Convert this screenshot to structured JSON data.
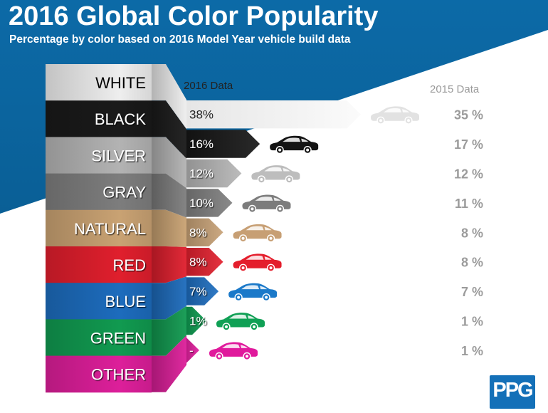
{
  "header": {
    "title": "2016 Global Color Popularity",
    "subtitle": "Percentage by color based on 2016 Model Year vehicle build data"
  },
  "logo": {
    "text": "PPG",
    "color": "#1470b8"
  },
  "chart_data": {
    "type": "bar",
    "title": "2016 Global Color Popularity",
    "subtitle": "Percentage by color based on 2016 Model Year vehicle build data",
    "categories": [
      "WHITE",
      "BLACK",
      "SILVER",
      "GRAY",
      "NATURAL",
      "RED",
      "BLUE",
      "GREEN",
      "OTHER"
    ],
    "series": [
      {
        "name": "2016 Data",
        "values": [
          38,
          16,
          12,
          10,
          8,
          8,
          7,
          1,
          null
        ],
        "labels": [
          "38%",
          "16%",
          "12%",
          "10%",
          "8%",
          "8%",
          "7%",
          "1%",
          "-"
        ]
      },
      {
        "name": "2015 Data",
        "values": [
          35,
          17,
          12,
          11,
          8,
          8,
          7,
          1,
          1
        ],
        "labels": [
          "35 %",
          "17 %",
          "12 %",
          "11 %",
          "8 %",
          "8 %",
          "7 %",
          "1 %",
          "1 %"
        ]
      }
    ],
    "colors": [
      "#f4f4f4",
      "#161616",
      "#b6b6b6",
      "#808080",
      "#c8a277",
      "#e3202e",
      "#1e6ec0",
      "#0f9e52",
      "#e21f9e"
    ],
    "band_colors": [
      "#eeeeee",
      "#1a1a1a",
      "#b3b3b3",
      "#7d7d7d",
      "#c9a273",
      "#e01f2d",
      "#1d6cbd",
      "#119a50",
      "#dd1f9a"
    ],
    "car_colors": [
      "#e2e2e2",
      "#141414",
      "#bdbdbd",
      "#7c7c7c",
      "#c79f74",
      "#e41e2c",
      "#1b79c9",
      "#10a055",
      "#e0199c"
    ],
    "label_colors": [
      "#000000",
      "#ffffff",
      "#ffffff",
      "#ffffff",
      "#ffffff",
      "#ffffff",
      "#ffffff",
      "#ffffff",
      "#ffffff"
    ],
    "label_shadow": [
      false,
      true,
      true,
      true,
      true,
      true,
      true,
      true,
      true
    ],
    "value_text_colors": [
      "#222222",
      "#ffffff",
      "#ffffff",
      "#ffffff",
      "#ffffff",
      "#ffffff",
      "#ffffff",
      "#ffffff",
      "#ffffff"
    ],
    "legend": "top",
    "grid": false,
    "background": {
      "accent": "#0d6aa6"
    }
  }
}
